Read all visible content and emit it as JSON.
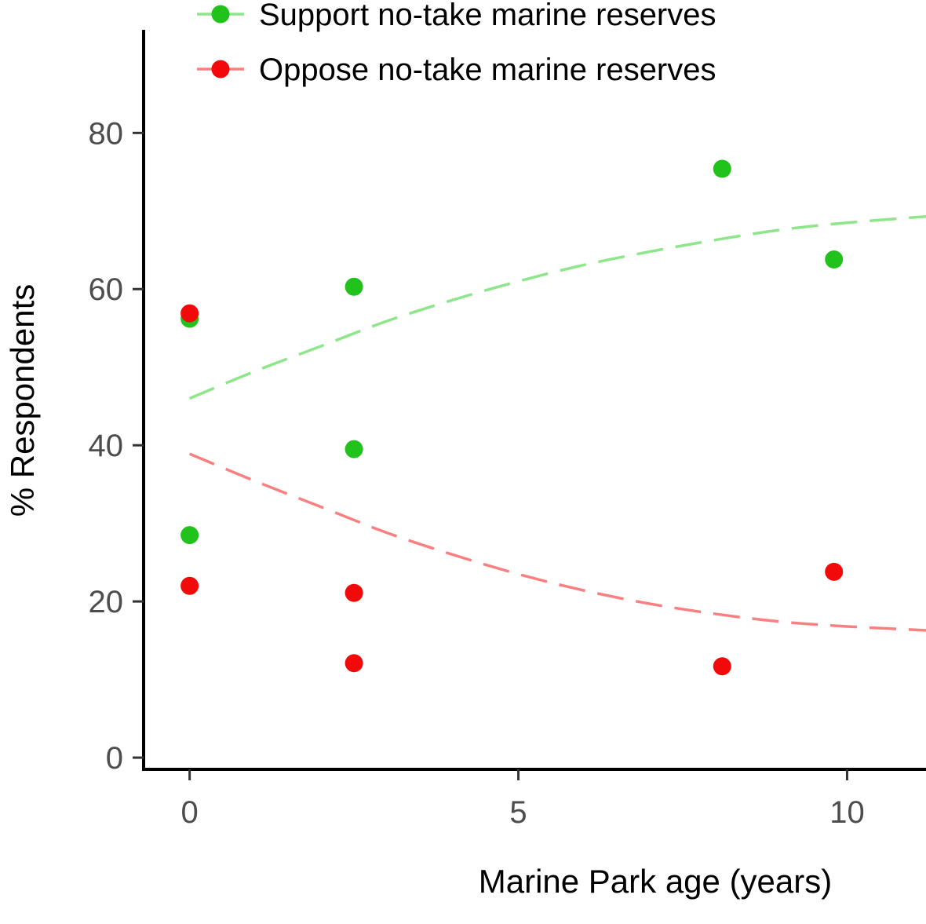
{
  "chart_data": {
    "type": "scatter",
    "xlabel": "Marine Park age (years)",
    "ylabel": "% Respondents",
    "xlim": [
      -0.7,
      11.2
    ],
    "ylim": [
      -1.5,
      93.2
    ],
    "x_ticks": [
      0,
      5,
      10
    ],
    "y_ticks": [
      0,
      20,
      40,
      60,
      80
    ],
    "grid": false,
    "legend_position": "top",
    "series": [
      {
        "name": "Support no-take marine reserves",
        "color": "#22c21c",
        "points": [
          {
            "x": 0,
            "y": 56.2
          },
          {
            "x": 0,
            "y": 28.5
          },
          {
            "x": 2.5,
            "y": 60.3
          },
          {
            "x": 2.5,
            "y": 39.5
          },
          {
            "x": 8.1,
            "y": 75.4
          },
          {
            "x": 9.8,
            "y": 63.8
          }
        ],
        "trend_color": "#8ee68a",
        "trend": [
          {
            "x": 0,
            "y": 46
          },
          {
            "x": 1,
            "y": 49.5
          },
          {
            "x": 2,
            "y": 52.7
          },
          {
            "x": 3,
            "y": 55.9
          },
          {
            "x": 4,
            "y": 58.6
          },
          {
            "x": 5,
            "y": 61
          },
          {
            "x": 6,
            "y": 63.1
          },
          {
            "x": 7,
            "y": 64.8
          },
          {
            "x": 8,
            "y": 66.3
          },
          {
            "x": 9,
            "y": 67.6
          },
          {
            "x": 10,
            "y": 68.5
          },
          {
            "x": 11.2,
            "y": 69.3
          }
        ]
      },
      {
        "name": "Oppose no-take marine reserves",
        "color": "#f20a0a",
        "points": [
          {
            "x": 0,
            "y": 56.9
          },
          {
            "x": 0,
            "y": 22
          },
          {
            "x": 2.5,
            "y": 21.1
          },
          {
            "x": 2.5,
            "y": 12.1
          },
          {
            "x": 8.1,
            "y": 11.7
          },
          {
            "x": 9.8,
            "y": 23.8
          }
        ],
        "trend_color": "#f88080",
        "trend": [
          {
            "x": 0,
            "y": 38.9
          },
          {
            "x": 1,
            "y": 35.4
          },
          {
            "x": 2,
            "y": 32.1
          },
          {
            "x": 3,
            "y": 28.8
          },
          {
            "x": 4,
            "y": 26
          },
          {
            "x": 5,
            "y": 23.5
          },
          {
            "x": 6,
            "y": 21.4
          },
          {
            "x": 7,
            "y": 19.7
          },
          {
            "x": 8,
            "y": 18.4
          },
          {
            "x": 9,
            "y": 17.4
          },
          {
            "x": 10,
            "y": 16.8
          },
          {
            "x": 11.2,
            "y": 16.3
          }
        ]
      }
    ]
  }
}
